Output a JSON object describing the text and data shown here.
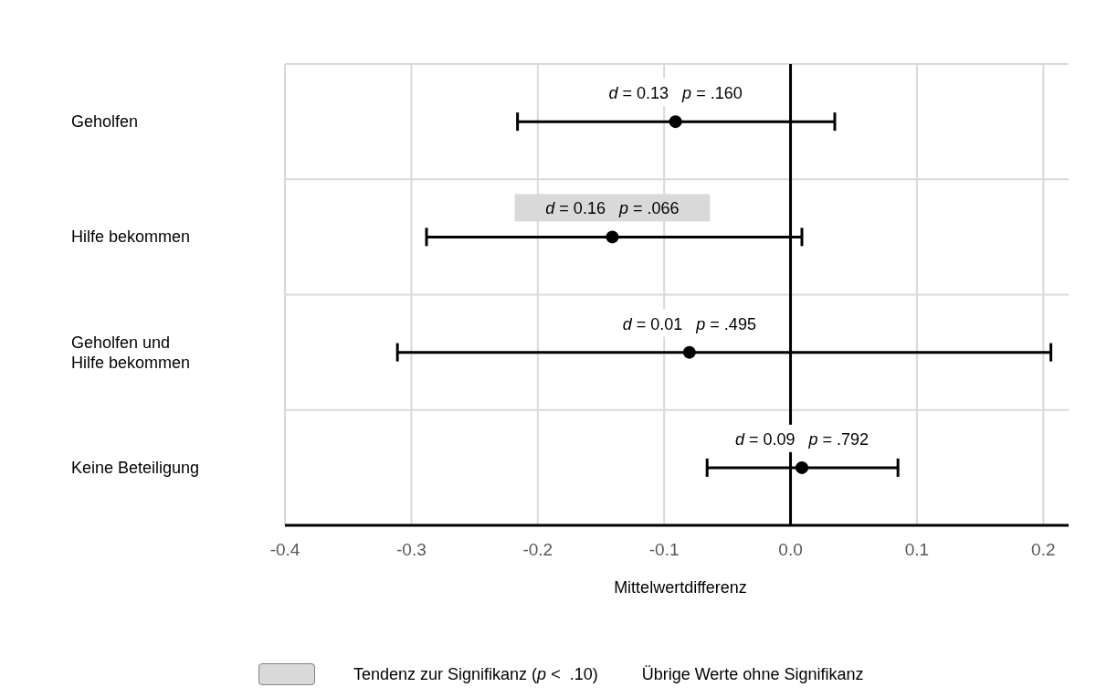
{
  "chart_data": {
    "type": "scatter",
    "categories": [
      "Geholfen",
      "Hilfe bekommen",
      "Geholfen und Hilfe bekommen",
      "Keine Beteiligung"
    ],
    "series": [
      {
        "color": "#000000",
        "values": [
          null,
          -0.141,
          null,
          null
        ],
        "errors": [
          null,
          [
            -0.288,
            0.009
          ],
          null,
          null
        ],
        "value_labels": [
          null,
          "d = 0.16   p = .066",
          null,
          null
        ]
      },
      {
        "color": "#000000",
        "values": [
          -0.091,
          null,
          -0.08,
          0.009
        ],
        "errors": [
          [
            -0.216,
            0.035
          ],
          null,
          [
            -0.311,
            0.206
          ],
          [
            -0.066,
            0.085
          ]
        ],
        "value_labels": [
          "d = 0.13   p = .160",
          null,
          "d = 0.01   p = .495",
          "d = 0.09   p = .792"
        ]
      }
    ],
    "orientation": "horizontal",
    "xlabel": "Mittelwertdifferenz",
    "xlim": [
      -0.4,
      0.22
    ],
    "xticks": [
      {
        "value": -0.4,
        "label": "-0.4"
      },
      {
        "value": -0.3,
        "label": "-0.3"
      },
      {
        "value": -0.2,
        "label": "-0.2"
      },
      {
        "value": -0.1,
        "label": "-0.1"
      },
      {
        "value": 0,
        "label": "0.0"
      },
      {
        "value": 0.1,
        "label": "0.1"
      },
      {
        "value": 0.2,
        "label": "0.2"
      }
    ],
    "ref_lines": [
      {
        "axis": "x",
        "value": 0,
        "color": "#000000"
      }
    ],
    "grid": true,
    "marker": "circle",
    "annotations": [
      "Tendenz zur Signifikanz (p <  .10)",
      "Übrige Werte ohne Signifikanz"
    ]
  }
}
